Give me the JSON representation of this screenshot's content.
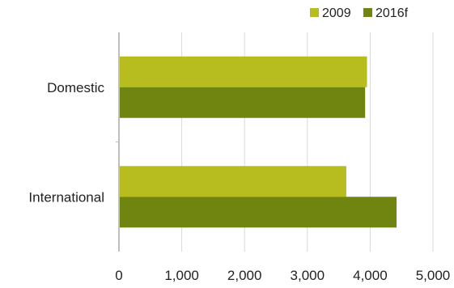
{
  "chart_data": {
    "type": "bar",
    "orientation": "horizontal",
    "title": "",
    "xlabel": "",
    "ylabel": "",
    "categories": [
      "Domestic",
      "International"
    ],
    "series": [
      {
        "name": "2009",
        "values": [
          3950,
          3620
        ],
        "color": "#b7bd1f"
      },
      {
        "name": "2016f",
        "values": [
          3920,
          4420
        ],
        "color": "#708510"
      }
    ],
    "xlim": [
      0,
      5000
    ],
    "xticks": [
      0,
      1000,
      2000,
      3000,
      4000,
      5000
    ],
    "xtick_labels": [
      "0",
      "1,000",
      "2,000",
      "3,000",
      "4,000",
      "5,000"
    ],
    "grid": "vertical",
    "legend": "top-right"
  }
}
